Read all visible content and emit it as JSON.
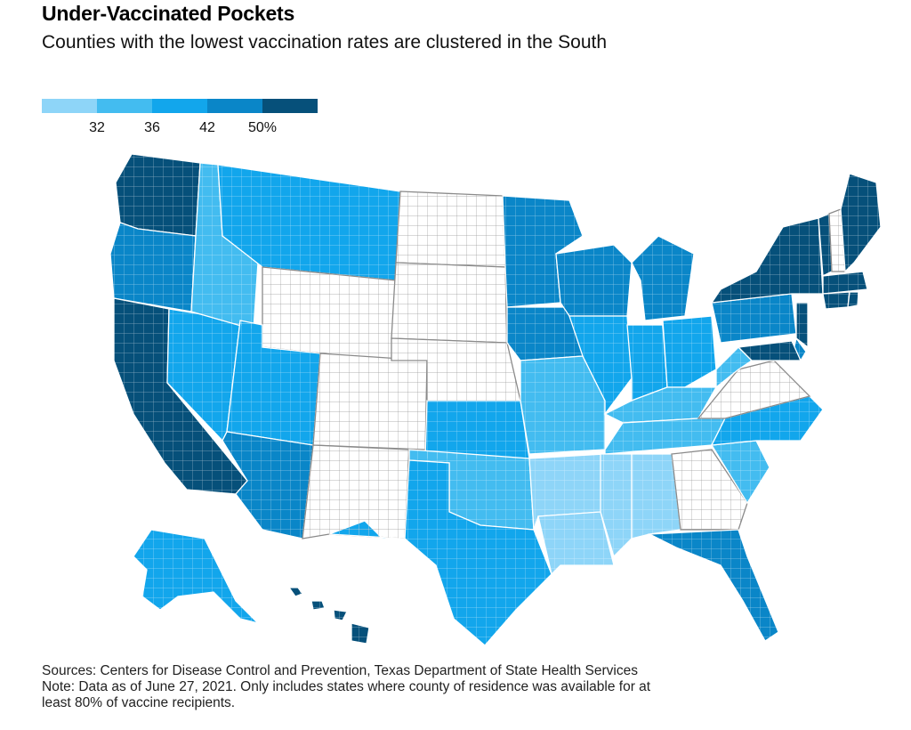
{
  "header": {
    "title": "Under-Vaccinated Pockets",
    "subtitle": "Counties with the lowest vaccination rates are clustered in the South"
  },
  "legend": {
    "colors": [
      "#8ed5f8",
      "#43bcf0",
      "#12a6ec",
      "#0a86c8",
      "#06507a"
    ],
    "tick_labels": [
      "32",
      "36",
      "42",
      "50%"
    ]
  },
  "map": {
    "no_data_color": "#ffffff",
    "no_data_states": [
      "CO",
      "NM",
      "WY",
      "NE",
      "SD",
      "ND",
      "VA",
      "GA",
      "NH"
    ],
    "state_shades": {
      "WA": 4,
      "OR": 3,
      "CA": 4,
      "ID": 1,
      "MT": 2,
      "NV": 2,
      "UT": 2,
      "AZ": 3,
      "TX": 2,
      "OK": 1,
      "KS": 2,
      "MN": 3,
      "IA": 3,
      "MO": 1,
      "AR": 0,
      "LA": 0,
      "WI": 3,
      "IL": 2,
      "MI": 3,
      "IN": 2,
      "OH": 2,
      "KY": 1,
      "TN": 1,
      "MS": 0,
      "AL": 0,
      "FL": 3,
      "SC": 1,
      "NC": 2,
      "WV": 1,
      "PA": 3,
      "NY": 4,
      "VT": 4,
      "ME": 4,
      "MA": 4,
      "CT": 4,
      "RI": 4,
      "NJ": 4,
      "DE": 3,
      "MD": 4,
      "AK": 2,
      "HI": 4
    }
  },
  "footer": {
    "sources": "Sources: Centers for Disease Control and Prevention, Texas Department of State Health Services",
    "note_line1": "Note: Data as of June 27, 2021. Only includes states where county of residence was available for at",
    "note_line2": "least 80% of vaccine recipients."
  }
}
